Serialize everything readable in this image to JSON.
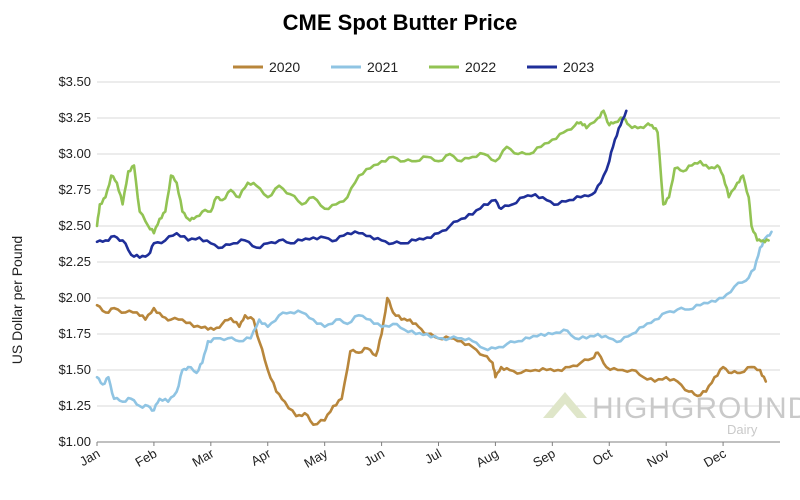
{
  "chart_data": {
    "type": "line",
    "title": "CME Spot Butter Price",
    "ylabel": "US Dollar per Pound",
    "xlabel": "",
    "ylim": [
      1.0,
      3.5
    ],
    "xlim": [
      0,
      12
    ],
    "y_ticks": [
      {
        "value": 1.0,
        "label": "$1.00"
      },
      {
        "value": 1.25,
        "label": "$1.25"
      },
      {
        "value": 1.5,
        "label": "$1.50"
      },
      {
        "value": 1.75,
        "label": "$1.75"
      },
      {
        "value": 2.0,
        "label": "$2.00"
      },
      {
        "value": 2.25,
        "label": "$2.25"
      },
      {
        "value": 2.5,
        "label": "$2.50"
      },
      {
        "value": 2.75,
        "label": "$2.75"
      },
      {
        "value": 3.0,
        "label": "$3.00"
      },
      {
        "value": 3.25,
        "label": "$3.25"
      },
      {
        "value": 3.5,
        "label": "$3.50"
      }
    ],
    "x_ticks": [
      "Jan",
      "Feb",
      "Mar",
      "Apr",
      "May",
      "Jun",
      "Jul",
      "Aug",
      "Sep",
      "Oct",
      "Nov",
      "Dec"
    ],
    "grid": true,
    "legend_position": "top",
    "series": [
      {
        "name": "2020",
        "color": "#b8863b",
        "points": [
          [
            0.0,
            1.95
          ],
          [
            0.15,
            1.9
          ],
          [
            0.3,
            1.93
          ],
          [
            0.5,
            1.9
          ],
          [
            0.7,
            1.9
          ],
          [
            0.85,
            1.85
          ],
          [
            1.0,
            1.93
          ],
          [
            1.15,
            1.87
          ],
          [
            1.3,
            1.85
          ],
          [
            1.5,
            1.85
          ],
          [
            1.7,
            1.8
          ],
          [
            1.9,
            1.8
          ],
          [
            2.05,
            1.78
          ],
          [
            2.2,
            1.82
          ],
          [
            2.35,
            1.86
          ],
          [
            2.5,
            1.8
          ],
          [
            2.6,
            1.88
          ],
          [
            2.75,
            1.85
          ],
          [
            2.85,
            1.7
          ],
          [
            3.0,
            1.5
          ],
          [
            3.15,
            1.35
          ],
          [
            3.3,
            1.28
          ],
          [
            3.5,
            1.18
          ],
          [
            3.65,
            1.2
          ],
          [
            3.8,
            1.12
          ],
          [
            4.0,
            1.15
          ],
          [
            4.15,
            1.25
          ],
          [
            4.3,
            1.3
          ],
          [
            4.45,
            1.63
          ],
          [
            4.6,
            1.62
          ],
          [
            4.75,
            1.65
          ],
          [
            4.9,
            1.6
          ],
          [
            5.0,
            1.75
          ],
          [
            5.1,
            2.0
          ],
          [
            5.2,
            1.9
          ],
          [
            5.35,
            1.85
          ],
          [
            5.5,
            1.85
          ],
          [
            5.65,
            1.8
          ],
          [
            5.8,
            1.75
          ],
          [
            6.0,
            1.72
          ],
          [
            6.2,
            1.72
          ],
          [
            6.4,
            1.7
          ],
          [
            6.6,
            1.66
          ],
          [
            6.8,
            1.6
          ],
          [
            6.95,
            1.55
          ],
          [
            7.0,
            1.45
          ],
          [
            7.1,
            1.52
          ],
          [
            7.25,
            1.5
          ],
          [
            7.45,
            1.48
          ],
          [
            7.7,
            1.5
          ],
          [
            7.9,
            1.5
          ],
          [
            8.1,
            1.5
          ],
          [
            8.3,
            1.52
          ],
          [
            8.5,
            1.55
          ],
          [
            8.7,
            1.58
          ],
          [
            8.8,
            1.62
          ],
          [
            8.95,
            1.52
          ],
          [
            9.15,
            1.5
          ],
          [
            9.4,
            1.5
          ],
          [
            9.6,
            1.45
          ],
          [
            9.8,
            1.42
          ],
          [
            10.0,
            1.45
          ],
          [
            10.2,
            1.42
          ],
          [
            10.4,
            1.35
          ],
          [
            10.55,
            1.32
          ],
          [
            10.7,
            1.35
          ],
          [
            10.85,
            1.45
          ],
          [
            11.0,
            1.52
          ],
          [
            11.15,
            1.48
          ],
          [
            11.3,
            1.48
          ],
          [
            11.5,
            1.52
          ],
          [
            11.65,
            1.5
          ],
          [
            11.75,
            1.42
          ]
        ]
      },
      {
        "name": "2021",
        "color": "#8fc4e3",
        "points": [
          [
            0.0,
            1.45
          ],
          [
            0.1,
            1.4
          ],
          [
            0.2,
            1.45
          ],
          [
            0.3,
            1.3
          ],
          [
            0.45,
            1.28
          ],
          [
            0.6,
            1.3
          ],
          [
            0.75,
            1.25
          ],
          [
            0.9,
            1.25
          ],
          [
            1.0,
            1.22
          ],
          [
            1.1,
            1.3
          ],
          [
            1.25,
            1.28
          ],
          [
            1.4,
            1.35
          ],
          [
            1.5,
            1.5
          ],
          [
            1.6,
            1.52
          ],
          [
            1.75,
            1.48
          ],
          [
            1.85,
            1.55
          ],
          [
            1.95,
            1.7
          ],
          [
            2.1,
            1.72
          ],
          [
            2.3,
            1.72
          ],
          [
            2.5,
            1.7
          ],
          [
            2.7,
            1.72
          ],
          [
            2.85,
            1.85
          ],
          [
            3.0,
            1.8
          ],
          [
            3.2,
            1.88
          ],
          [
            3.4,
            1.9
          ],
          [
            3.6,
            1.9
          ],
          [
            3.8,
            1.85
          ],
          [
            4.0,
            1.8
          ],
          [
            4.2,
            1.85
          ],
          [
            4.4,
            1.82
          ],
          [
            4.6,
            1.88
          ],
          [
            4.8,
            1.85
          ],
          [
            5.0,
            1.8
          ],
          [
            5.2,
            1.82
          ],
          [
            5.4,
            1.78
          ],
          [
            5.6,
            1.75
          ],
          [
            5.8,
            1.75
          ],
          [
            6.0,
            1.72
          ],
          [
            6.2,
            1.72
          ],
          [
            6.4,
            1.72
          ],
          [
            6.6,
            1.7
          ],
          [
            6.8,
            1.65
          ],
          [
            7.0,
            1.65
          ],
          [
            7.2,
            1.68
          ],
          [
            7.4,
            1.7
          ],
          [
            7.6,
            1.72
          ],
          [
            7.8,
            1.75
          ],
          [
            8.0,
            1.75
          ],
          [
            8.2,
            1.78
          ],
          [
            8.4,
            1.72
          ],
          [
            8.6,
            1.72
          ],
          [
            8.8,
            1.75
          ],
          [
            9.0,
            1.72
          ],
          [
            9.2,
            1.7
          ],
          [
            9.4,
            1.75
          ],
          [
            9.6,
            1.8
          ],
          [
            9.8,
            1.85
          ],
          [
            10.0,
            1.9
          ],
          [
            10.2,
            1.92
          ],
          [
            10.4,
            1.92
          ],
          [
            10.6,
            1.95
          ],
          [
            10.8,
            1.98
          ],
          [
            11.0,
            2.0
          ],
          [
            11.2,
            2.08
          ],
          [
            11.4,
            2.12
          ],
          [
            11.55,
            2.2
          ],
          [
            11.65,
            2.35
          ],
          [
            11.75,
            2.42
          ],
          [
            11.85,
            2.46
          ]
        ]
      },
      {
        "name": "2022",
        "color": "#92c353",
        "points": [
          [
            0.0,
            2.5
          ],
          [
            0.05,
            2.65
          ],
          [
            0.15,
            2.7
          ],
          [
            0.25,
            2.85
          ],
          [
            0.35,
            2.8
          ],
          [
            0.45,
            2.65
          ],
          [
            0.55,
            2.88
          ],
          [
            0.65,
            2.92
          ],
          [
            0.75,
            2.6
          ],
          [
            0.9,
            2.5
          ],
          [
            1.0,
            2.45
          ],
          [
            1.1,
            2.55
          ],
          [
            1.2,
            2.6
          ],
          [
            1.3,
            2.85
          ],
          [
            1.4,
            2.8
          ],
          [
            1.5,
            2.6
          ],
          [
            1.6,
            2.55
          ],
          [
            1.7,
            2.55
          ],
          [
            1.85,
            2.6
          ],
          [
            2.0,
            2.6
          ],
          [
            2.1,
            2.7
          ],
          [
            2.2,
            2.68
          ],
          [
            2.35,
            2.75
          ],
          [
            2.5,
            2.7
          ],
          [
            2.65,
            2.8
          ],
          [
            2.8,
            2.78
          ],
          [
            3.0,
            2.7
          ],
          [
            3.2,
            2.78
          ],
          [
            3.4,
            2.72
          ],
          [
            3.6,
            2.65
          ],
          [
            3.8,
            2.7
          ],
          [
            4.0,
            2.62
          ],
          [
            4.2,
            2.65
          ],
          [
            4.4,
            2.7
          ],
          [
            4.6,
            2.85
          ],
          [
            4.8,
            2.9
          ],
          [
            5.0,
            2.95
          ],
          [
            5.2,
            2.98
          ],
          [
            5.4,
            2.95
          ],
          [
            5.6,
            2.95
          ],
          [
            5.8,
            2.98
          ],
          [
            6.0,
            2.95
          ],
          [
            6.2,
            3.0
          ],
          [
            6.4,
            2.95
          ],
          [
            6.6,
            2.98
          ],
          [
            6.8,
            3.0
          ],
          [
            7.0,
            2.95
          ],
          [
            7.2,
            3.05
          ],
          [
            7.4,
            3.0
          ],
          [
            7.6,
            3.0
          ],
          [
            7.8,
            3.05
          ],
          [
            8.0,
            3.1
          ],
          [
            8.2,
            3.15
          ],
          [
            8.4,
            3.2
          ],
          [
            8.5,
            3.22
          ],
          [
            8.6,
            3.18
          ],
          [
            8.8,
            3.25
          ],
          [
            8.9,
            3.3
          ],
          [
            9.0,
            3.2
          ],
          [
            9.1,
            3.22
          ],
          [
            9.25,
            3.25
          ],
          [
            9.35,
            3.2
          ],
          [
            9.5,
            3.18
          ],
          [
            9.65,
            3.2
          ],
          [
            9.75,
            3.2
          ],
          [
            9.85,
            3.15
          ],
          [
            9.95,
            2.65
          ],
          [
            10.05,
            2.7
          ],
          [
            10.15,
            2.9
          ],
          [
            10.3,
            2.88
          ],
          [
            10.45,
            2.92
          ],
          [
            10.6,
            2.95
          ],
          [
            10.75,
            2.9
          ],
          [
            10.9,
            2.92
          ],
          [
            11.0,
            2.85
          ],
          [
            11.1,
            2.7
          ],
          [
            11.25,
            2.8
          ],
          [
            11.35,
            2.85
          ],
          [
            11.45,
            2.7
          ],
          [
            11.5,
            2.5
          ],
          [
            11.6,
            2.4
          ],
          [
            11.7,
            2.4
          ],
          [
            11.8,
            2.4
          ]
        ]
      },
      {
        "name": "2023",
        "color": "#1f2f99",
        "points": [
          [
            0.0,
            2.39
          ],
          [
            0.15,
            2.4
          ],
          [
            0.3,
            2.43
          ],
          [
            0.45,
            2.4
          ],
          [
            0.6,
            2.3
          ],
          [
            0.75,
            2.28
          ],
          [
            0.9,
            2.3
          ],
          [
            1.0,
            2.38
          ],
          [
            1.2,
            2.4
          ],
          [
            1.4,
            2.45
          ],
          [
            1.6,
            2.4
          ],
          [
            1.8,
            2.42
          ],
          [
            2.0,
            2.38
          ],
          [
            2.2,
            2.35
          ],
          [
            2.4,
            2.38
          ],
          [
            2.6,
            2.4
          ],
          [
            2.8,
            2.35
          ],
          [
            3.0,
            2.38
          ],
          [
            3.2,
            2.4
          ],
          [
            3.4,
            2.38
          ],
          [
            3.6,
            2.4
          ],
          [
            3.8,
            2.42
          ],
          [
            4.0,
            2.42
          ],
          [
            4.2,
            2.4
          ],
          [
            4.4,
            2.45
          ],
          [
            4.6,
            2.45
          ],
          [
            4.8,
            2.43
          ],
          [
            5.0,
            2.4
          ],
          [
            5.2,
            2.38
          ],
          [
            5.4,
            2.38
          ],
          [
            5.6,
            2.4
          ],
          [
            5.8,
            2.42
          ],
          [
            6.0,
            2.45
          ],
          [
            6.2,
            2.5
          ],
          [
            6.4,
            2.55
          ],
          [
            6.6,
            2.58
          ],
          [
            6.8,
            2.65
          ],
          [
            7.0,
            2.68
          ],
          [
            7.1,
            2.62
          ],
          [
            7.3,
            2.65
          ],
          [
            7.5,
            2.7
          ],
          [
            7.7,
            2.72
          ],
          [
            7.9,
            2.68
          ],
          [
            8.1,
            2.65
          ],
          [
            8.3,
            2.68
          ],
          [
            8.5,
            2.7
          ],
          [
            8.7,
            2.72
          ],
          [
            8.85,
            2.8
          ],
          [
            9.0,
            2.95
          ],
          [
            9.1,
            3.1
          ],
          [
            9.2,
            3.2
          ],
          [
            9.3,
            3.3
          ]
        ]
      }
    ]
  },
  "watermark": {
    "main_text": "HIGHGROUND",
    "sub_text": "Dairy"
  }
}
